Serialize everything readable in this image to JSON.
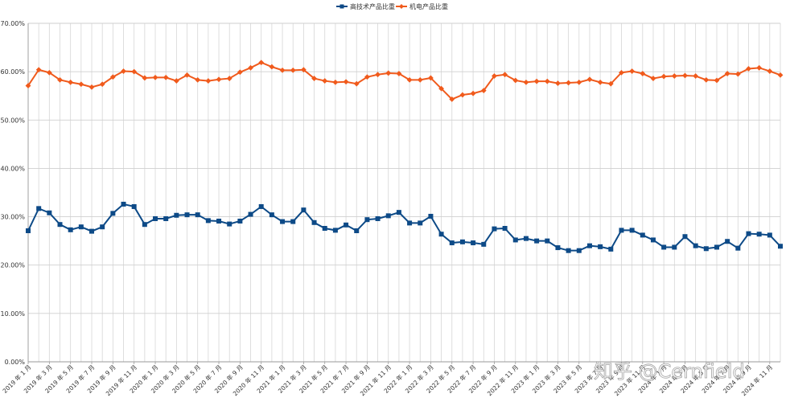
{
  "chart_data": {
    "type": "line",
    "title": "",
    "xlabel": "",
    "ylabel": "",
    "ylim": [
      0,
      70
    ],
    "y_tick_format": "percent_2dp",
    "y_ticks": [
      "0.00%",
      "10.00%",
      "20.00%",
      "30.00%",
      "40.00%",
      "50.00%",
      "60.00%",
      "70.00%"
    ],
    "grid": true,
    "legend_position": "top-center",
    "x": [
      "2019年1月",
      "2019年2月",
      "2019年3月",
      "2019年4月",
      "2019年5月",
      "2019年6月",
      "2019年7月",
      "2019年8月",
      "2019年9月",
      "2019年10月",
      "2019年11月",
      "2019年12月",
      "2020年1月",
      "2020年2月",
      "2020年3月",
      "2020年4月",
      "2020年5月",
      "2020年6月",
      "2020年7月",
      "2020年8月",
      "2020年9月",
      "2020年10月",
      "2020年11月",
      "2020年12月",
      "2021年1月",
      "2021年2月",
      "2021年3月",
      "2021年4月",
      "2021年5月",
      "2021年6月",
      "2021年7月",
      "2021年8月",
      "2021年9月",
      "2021年10月",
      "2021年11月",
      "2021年12月",
      "2022年1月",
      "2022年2月",
      "2022年3月",
      "2022年4月",
      "2022年5月",
      "2022年6月",
      "2022年7月",
      "2022年8月",
      "2022年9月",
      "2022年10月",
      "2022年11月",
      "2022年12月",
      "2023年1月",
      "2023年2月",
      "2023年3月",
      "2023年4月",
      "2023年5月",
      "2023年6月",
      "2023年7月",
      "2023年8月",
      "2023年9月",
      "2023年10月",
      "2023年11月",
      "2023年12月",
      "2024年1月",
      "2024年2月",
      "2024年3月",
      "2024年4月",
      "2024年5月",
      "2024年6月",
      "2024年7月",
      "2024年8月",
      "2024年9月",
      "2024年10月",
      "2024年11月",
      "2024年12月"
    ],
    "x_tick_labels": [
      "2019 年 1 月",
      "2019 年 3 月",
      "2019 年 5 月",
      "2019 年 7 月",
      "2019 年 9 月",
      "2019 年 11 月",
      "2020 年 1 月",
      "2020 年 3 月",
      "2020 年 5 月",
      "2020 年 7 月",
      "2020 年 9 月",
      "2020 年 11 月",
      "2021 年 1 月",
      "2021 年 3 月",
      "2021 年 5 月",
      "2021 年 7 月",
      "2021 年 9 月",
      "2021 年 11 月",
      "2022 年 1 月",
      "2022 年 3 月",
      "2022 年 5 月",
      "2022 年 7 月",
      "2022 年 9 月",
      "2022 年 11 月",
      "2023 年 1 月",
      "2023 年 3 月",
      "2023 年 5 月",
      "2023 年 7 月",
      "2023 年 9 月",
      "2023 年 11 月",
      "2024 年 1 月",
      "2024 年 3 月",
      "2024 年 5 月",
      "2024 年 7 月",
      "2024 年 9 月",
      "2024 年 11 月"
    ],
    "series": [
      {
        "name": "高技术产品比重",
        "color": "#0d4a87",
        "marker": "square",
        "values": [
          27.1,
          31.7,
          30.8,
          28.4,
          27.3,
          27.9,
          27.0,
          27.9,
          30.7,
          32.6,
          32.1,
          28.4,
          29.6,
          29.6,
          30.3,
          30.4,
          30.4,
          29.2,
          29.1,
          28.5,
          29.1,
          30.5,
          32.1,
          30.4,
          29.0,
          29.0,
          31.4,
          28.8,
          27.6,
          27.2,
          28.3,
          27.1,
          29.4,
          29.6,
          30.2,
          30.9,
          28.7,
          28.7,
          30.1,
          26.4,
          24.6,
          24.8,
          24.6,
          24.3,
          27.5,
          27.6,
          25.2,
          25.5,
          25.0,
          25.0,
          23.6,
          23.0,
          23.0,
          24.0,
          23.8,
          23.3,
          27.2,
          27.2,
          26.2,
          25.2,
          23.7,
          23.7,
          25.9,
          24.0,
          23.4,
          23.7,
          24.9,
          23.5,
          26.5,
          26.4,
          26.2,
          23.9
        ]
      },
      {
        "name": "机电产品比重",
        "color": "#f05a1c",
        "marker": "diamond",
        "values": [
          57.1,
          60.4,
          59.8,
          58.3,
          57.8,
          57.4,
          56.8,
          57.4,
          58.9,
          60.1,
          60.0,
          58.7,
          58.8,
          58.8,
          58.1,
          59.3,
          58.3,
          58.1,
          58.4,
          58.6,
          59.9,
          60.8,
          61.9,
          61.0,
          60.3,
          60.3,
          60.4,
          58.6,
          58.1,
          57.8,
          57.9,
          57.5,
          58.9,
          59.4,
          59.7,
          59.6,
          58.3,
          58.3,
          58.7,
          56.5,
          54.3,
          55.2,
          55.5,
          56.1,
          59.1,
          59.4,
          58.2,
          57.8,
          58.0,
          58.0,
          57.6,
          57.7,
          57.8,
          58.4,
          57.8,
          57.5,
          59.8,
          60.1,
          59.6,
          58.6,
          59.0,
          59.1,
          59.2,
          59.1,
          58.3,
          58.2,
          59.6,
          59.5,
          60.6,
          60.8,
          60.1,
          59.3
        ]
      }
    ]
  },
  "watermark": "知乎 @Cernfield"
}
